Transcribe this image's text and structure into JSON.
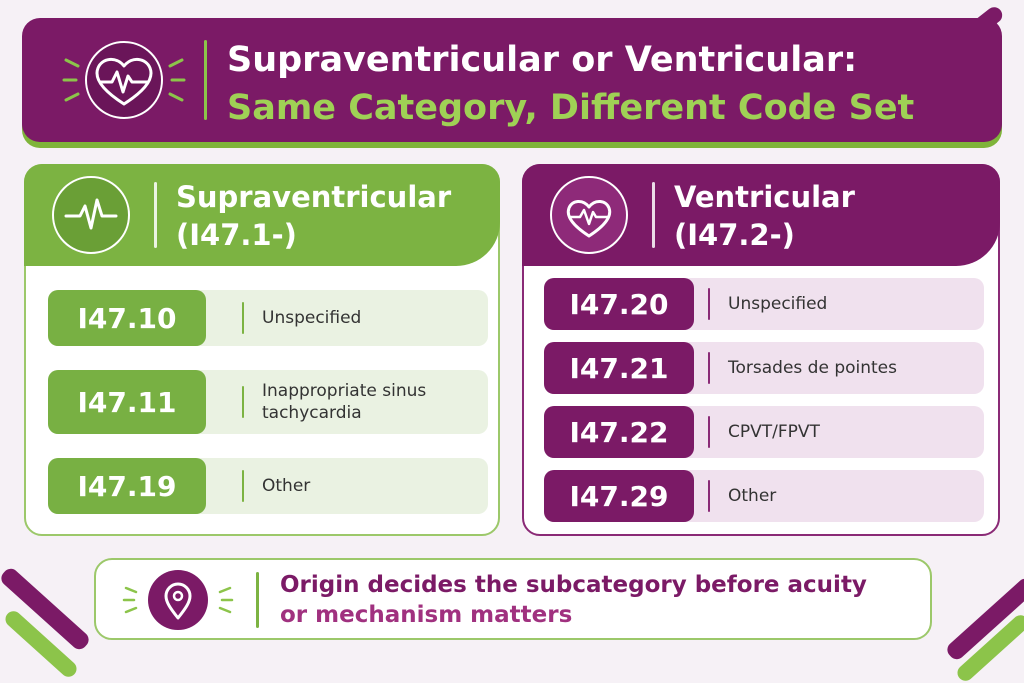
{
  "header": {
    "title_line1": "Supraventricular or Ventricular:",
    "title_line2": "Same Category, Different Code Set",
    "icon": "heart-pulse-icon"
  },
  "left_panel": {
    "title_line1": "Supraventricular",
    "title_line2": "(I47.1-)",
    "icon": "pulse-wave-icon",
    "rows": [
      {
        "code": "I47.10",
        "desc": "Unspecified"
      },
      {
        "code": "I47.11",
        "desc": "Inappropriate sinus tachycardia"
      },
      {
        "code": "I47.19",
        "desc": "Other"
      }
    ]
  },
  "right_panel": {
    "title_line1": "Ventricular",
    "title_line2": "(I47.2-)",
    "icon": "heart-pulse-icon",
    "rows": [
      {
        "code": "I47.20",
        "desc": "Unspecified"
      },
      {
        "code": "I47.21",
        "desc": "Torsades de pointes"
      },
      {
        "code": "I47.22",
        "desc": "CPVT/FPVT"
      },
      {
        "code": "I47.29",
        "desc": "Other"
      }
    ]
  },
  "footer": {
    "line1": "Origin decides the subcategory before acuity",
    "line2": "or mechanism matters",
    "icon": "location-pin-icon"
  },
  "colors": {
    "purple": "#7b1a66",
    "green": "#7cb342",
    "light_green": "#9fd155",
    "background": "#f6f1f6"
  }
}
